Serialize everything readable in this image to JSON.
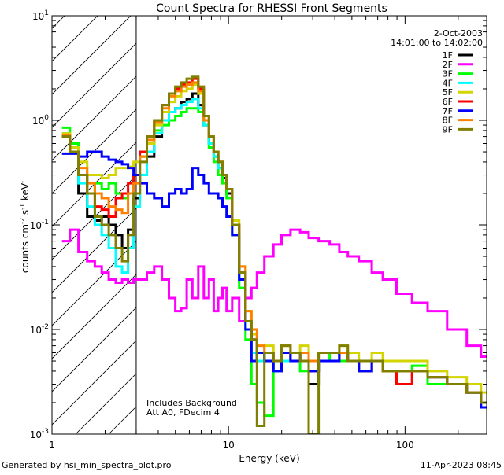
{
  "chart_data": {
    "type": "line",
    "style": "histogram-steps",
    "title": "Count Spectra for RHESSI Front Segments",
    "xlabel": "Energy (keV)",
    "ylabel": "counts cm-2 s-1 keV-1",
    "xscale": "log",
    "yscale": "log",
    "xlim": [
      1,
      290
    ],
    "ylim": [
      0.001,
      10
    ],
    "x_tick_labels": [
      "1",
      "10",
      "100"
    ],
    "y_tick_labels": [
      {
        "base": "10",
        "exp": "1"
      },
      {
        "base": "10",
        "exp": "0"
      },
      {
        "base": "10",
        "exp": "-1"
      },
      {
        "base": "10",
        "exp": "-2"
      },
      {
        "base": "10",
        "exp": "-3"
      }
    ],
    "shaded_region": {
      "from_keV": 1,
      "to_keV": 3,
      "pattern": "diagonal-hatch"
    },
    "legend": {
      "placement": "top-right",
      "date": "2-Oct-2003",
      "time_range": "14:01:00 to 14:02:00"
    },
    "annotations": [
      "Includes Background",
      "Att A0, FDecim 4"
    ],
    "x": [
      1.2,
      1.33,
      1.5,
      1.67,
      1.83,
      2.0,
      2.2,
      2.4,
      2.6,
      2.8,
      3.0,
      3.3,
      3.6,
      4.0,
      4.4,
      4.8,
      5.2,
      5.6,
      6.0,
      6.5,
      7.0,
      7.5,
      8.0,
      8.5,
      9.0,
      9.5,
      10,
      11,
      12,
      13,
      14,
      15,
      17,
      19,
      21,
      24,
      27,
      30,
      35,
      40,
      45,
      50,
      60,
      70,
      80,
      100,
      120,
      150,
      200,
      250,
      290
    ],
    "series": [
      {
        "name": "1F",
        "color": "#000000",
        "values": [
          0.7,
          0.5,
          0.2,
          0.12,
          0.11,
          0.12,
          0.1,
          0.08,
          0.06,
          0.09,
          0.18,
          0.3,
          0.45,
          0.7,
          1.0,
          1.2,
          1.3,
          1.5,
          1.6,
          1.8,
          1.4,
          0.9,
          0.6,
          0.45,
          0.35,
          0.28,
          0.2,
          0.1,
          0.03,
          0.012,
          0.008,
          0.005,
          0.006,
          0.004,
          0.006,
          0.005,
          0.006,
          0.003,
          0.005,
          0.005,
          0.006,
          0.005,
          0.004,
          0.005,
          0.004,
          0.004,
          0.004,
          0.0035,
          0.003,
          0.0025,
          0.002
        ]
      },
      {
        "name": "2F",
        "color": "#ff00ff",
        "values": [
          0.07,
          0.09,
          0.055,
          0.045,
          0.04,
          0.035,
          0.03,
          0.028,
          0.03,
          0.028,
          0.03,
          0.03,
          0.035,
          0.04,
          0.03,
          0.02,
          0.015,
          0.016,
          0.03,
          0.02,
          0.04,
          0.02,
          0.03,
          0.015,
          0.02,
          0.025,
          0.015,
          0.02,
          0.012,
          0.02,
          0.025,
          0.035,
          0.05,
          0.065,
          0.08,
          0.09,
          0.085,
          0.075,
          0.07,
          0.065,
          0.055,
          0.05,
          0.045,
          0.035,
          0.03,
          0.022,
          0.018,
          0.015,
          0.01,
          0.007,
          0.0055
        ]
      },
      {
        "name": "3F",
        "color": "#00ff00",
        "values": [
          0.85,
          0.6,
          0.3,
          0.2,
          0.25,
          0.22,
          0.25,
          0.2,
          0.18,
          0.2,
          0.3,
          0.45,
          0.6,
          0.8,
          0.9,
          1.0,
          1.1,
          1.2,
          1.3,
          1.3,
          1.2,
          0.9,
          0.55,
          0.4,
          0.3,
          0.25,
          0.18,
          0.08,
          0.025,
          0.008,
          0.003,
          0.002,
          0.0015,
          0.004,
          0.006,
          0.005,
          0.004,
          0.004,
          0.005,
          0.006,
          0.005,
          0.005,
          0.004,
          0.005,
          0.004,
          0.004,
          0.0045,
          0.003,
          0.003,
          0.0025,
          0.002
        ]
      },
      {
        "name": "4F",
        "color": "#00ffff",
        "values": [
          0.75,
          0.55,
          0.25,
          0.15,
          0.1,
          0.08,
          0.06,
          0.04,
          0.035,
          0.06,
          0.15,
          0.3,
          0.5,
          0.75,
          1.0,
          1.2,
          1.3,
          1.4,
          1.5,
          1.6,
          1.3,
          0.9,
          0.6,
          0.45,
          0.35,
          0.3,
          0.22,
          0.1,
          0.03,
          0.01,
          0.006,
          0.005,
          0.006,
          0.004,
          0.005,
          0.005,
          0.006,
          0.004,
          0.005,
          0.005,
          0.006,
          0.005,
          0.004,
          0.005,
          0.004,
          0.004,
          0.004,
          0.0035,
          0.003,
          0.0025,
          0.002
        ]
      },
      {
        "name": "5F",
        "color": "#d4d400",
        "values": [
          0.75,
          0.55,
          0.4,
          0.3,
          0.3,
          0.28,
          0.3,
          0.35,
          0.35,
          0.36,
          0.4,
          0.45,
          0.6,
          0.9,
          1.2,
          1.5,
          1.7,
          1.9,
          2.0,
          2.2,
          1.8,
          1.0,
          0.7,
          0.5,
          0.4,
          0.3,
          0.22,
          0.11,
          0.04,
          0.015,
          0.009,
          0.006,
          0.007,
          0.005,
          0.007,
          0.006,
          0.007,
          0.005,
          0.006,
          0.006,
          0.007,
          0.006,
          0.005,
          0.006,
          0.005,
          0.005,
          0.005,
          0.004,
          0.0035,
          0.003,
          0.0025
        ]
      },
      {
        "name": "6F",
        "color": "#ff0000",
        "values": [
          0.7,
          0.5,
          0.3,
          0.2,
          0.15,
          0.14,
          0.12,
          0.18,
          0.2,
          0.25,
          0.3,
          0.5,
          0.7,
          1.0,
          1.4,
          1.8,
          2.0,
          2.2,
          2.3,
          2.5,
          2.0,
          1.1,
          0.7,
          0.5,
          0.4,
          0.3,
          0.22,
          0.1,
          0.035,
          0.012,
          0.008,
          0.006,
          0.006,
          0.005,
          0.006,
          0.005,
          0.006,
          0.004,
          0.005,
          0.005,
          0.006,
          0.005,
          0.004,
          0.005,
          0.004,
          0.003,
          0.004,
          0.0035,
          0.003,
          0.0025,
          0.002
        ]
      },
      {
        "name": "7F",
        "color": "#0000ff",
        "values": [
          0.48,
          0.48,
          0.45,
          0.5,
          0.5,
          0.45,
          0.42,
          0.4,
          0.38,
          0.35,
          0.3,
          0.25,
          0.2,
          0.18,
          0.15,
          0.2,
          0.22,
          0.2,
          0.22,
          0.35,
          0.3,
          0.25,
          0.2,
          0.2,
          0.18,
          0.15,
          0.12,
          0.08,
          0.03,
          0.01,
          0.005,
          0.006,
          0.005,
          0.004,
          0.006,
          0.005,
          0.006,
          0.004,
          0.005,
          0.005,
          0.006,
          0.005,
          0.004,
          0.005,
          0.004,
          0.004,
          0.004,
          0.0035,
          0.003,
          0.0025,
          0.0018
        ]
      },
      {
        "name": "8F",
        "color": "#ff8000",
        "values": [
          0.72,
          0.5,
          0.35,
          0.25,
          0.2,
          0.18,
          0.15,
          0.14,
          0.13,
          0.2,
          0.25,
          0.45,
          0.65,
          0.95,
          1.3,
          1.7,
          1.9,
          2.1,
          2.2,
          2.3,
          1.9,
          1.0,
          0.7,
          0.5,
          0.4,
          0.3,
          0.22,
          0.1,
          0.04,
          0.015,
          0.01,
          0.007,
          0.006,
          0.005,
          0.007,
          0.006,
          0.006,
          0.005,
          0.006,
          0.006,
          0.006,
          0.005,
          0.005,
          0.005,
          0.004,
          0.004,
          0.004,
          0.0035,
          0.003,
          0.0025,
          0.002
        ]
      },
      {
        "name": "9F",
        "color": "#808000",
        "values": [
          0.7,
          0.5,
          0.3,
          0.2,
          0.12,
          0.1,
          0.08,
          0.06,
          0.045,
          0.08,
          0.2,
          0.4,
          0.7,
          1.0,
          1.4,
          1.8,
          2.1,
          2.3,
          2.5,
          2.6,
          2.1,
          1.1,
          0.7,
          0.5,
          0.4,
          0.3,
          0.22,
          0.1,
          0.035,
          0.012,
          0.008,
          0.0012,
          0.006,
          0.005,
          0.007,
          0.006,
          0.005,
          0.001,
          0.006,
          0.006,
          0.007,
          0.005,
          0.005,
          0.005,
          0.004,
          0.004,
          0.004,
          0.0035,
          0.003,
          0.0025,
          0.002
        ]
      }
    ]
  },
  "footer": {
    "generated_by": "Generated by hsi_min_spectra_plot.pro",
    "timestamp": "11-Apr-2023 08:45"
  }
}
